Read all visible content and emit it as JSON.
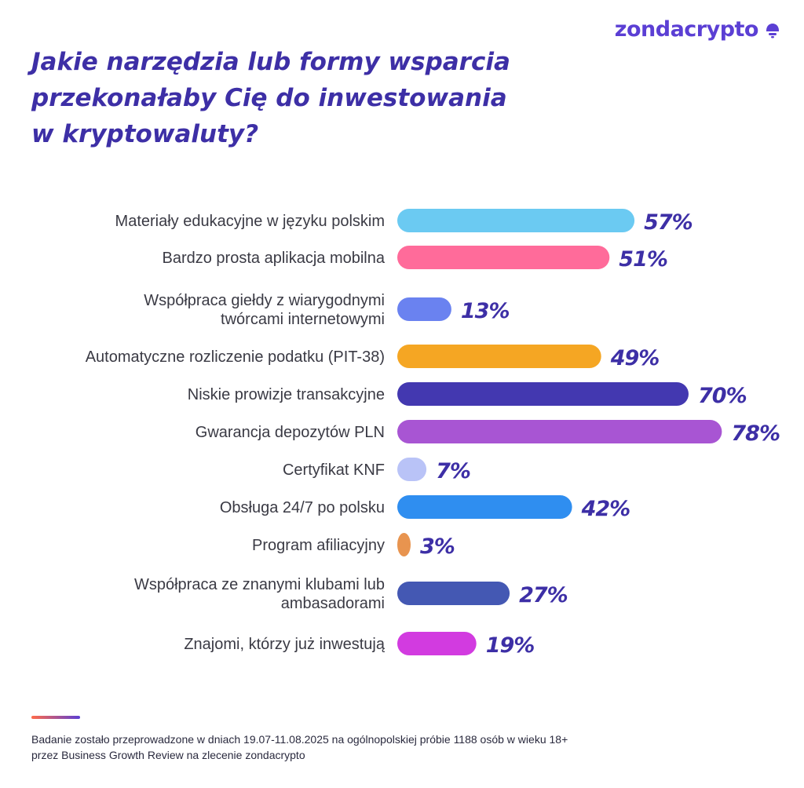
{
  "brand": {
    "name": "zondacrypto",
    "icon": "zondacrypto-logo-icon",
    "color": "#5b3fd4"
  },
  "title": "Jakie narzędzia lub formy wsparcia\nprzekonałaby Cię do inwestowania\nw kryptowaluty?",
  "footnote": "Badanie zostało przeprowadzone w dniach 19.07-11.08.2025 na ogólnopolskiej próbie 1188 osób w wieku 18+\nprzez Business Growth Review na zlecenie zondacrypto",
  "colors": {
    "title": "#3d2fa6",
    "value_label": "#3d2fa6",
    "category_label": "#3a3a44",
    "footer_accent_start": "#ff6b4a",
    "footer_accent_end": "#5b3fd4"
  },
  "chart_data": {
    "type": "bar",
    "orientation": "horizontal",
    "unit": "%",
    "xlim": [
      0,
      100
    ],
    "grid": false,
    "categories": [
      [
        "Materiały edukacyjne w języku polskim"
      ],
      [
        "Bardzo prosta aplikacja mobilna"
      ],
      [
        "Współpraca giełdy z wiarygodnymi",
        "twórcami internetowymi"
      ],
      [
        "Automatyczne rozliczenie podatku (PIT-38)"
      ],
      [
        "Niskie prowizje transakcyjne"
      ],
      [
        "Gwarancja depozytów PLN"
      ],
      [
        "Certyfikat KNF"
      ],
      [
        "Obsługa 24/7 po polsku"
      ],
      [
        "Program afiliacyjny"
      ],
      [
        "Współpraca ze znanymi klubami lub",
        "ambasadorami"
      ],
      [
        "Znajomi, którzy już inwestują"
      ]
    ],
    "values": [
      57,
      51,
      13,
      49,
      70,
      78,
      7,
      42,
      3,
      27,
      19
    ],
    "value_labels": [
      "57%",
      "51%",
      "13%",
      "49%",
      "70%",
      "78%",
      "7%",
      "42%",
      "3%",
      "27%",
      "19%"
    ],
    "bar_colors": [
      "#6bcaf2",
      "#ff6b9a",
      "#6a82f0",
      "#f5a623",
      "#4338b0",
      "#a855d3",
      "#b9c3f7",
      "#2f8ef0",
      "#e8944f",
      "#4458b3",
      "#d23be0"
    ]
  }
}
